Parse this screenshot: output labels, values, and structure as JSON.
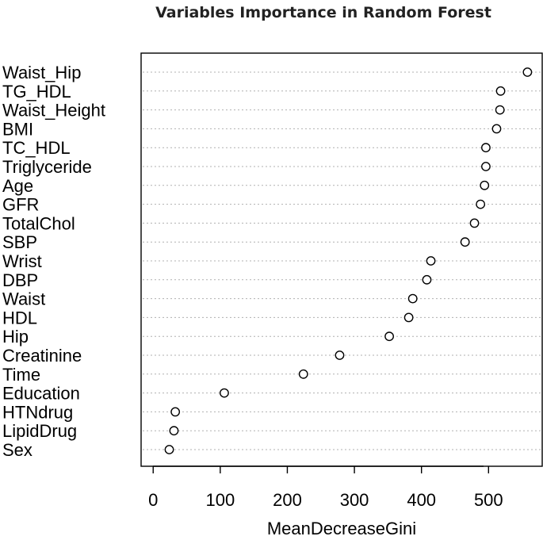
{
  "chart_data": {
    "type": "scatter",
    "title": "Variables Importance in Random Forest",
    "xlabel": "MeanDecreaseGini",
    "ylabel": "",
    "xlim": [
      -18,
      580
    ],
    "xticks": [
      0,
      100,
      200,
      300,
      400,
      500
    ],
    "grid": "dotted guide lines per variable",
    "categories": [
      "Waist_Hip",
      "TG_HDL",
      "Waist_Height",
      "BMI",
      "TC_HDL",
      "Triglyceride",
      "Age",
      "GFR",
      "TotalChol",
      "SBP",
      "Wrist",
      "DBP",
      "Waist",
      "HDL",
      "Hip",
      "Creatinine",
      "Time",
      "Education",
      "HTNdrug",
      "LipidDrug",
      "Sex"
    ],
    "values": [
      558,
      518,
      517,
      512,
      496,
      496,
      494,
      488,
      479,
      465,
      414,
      408,
      387,
      381,
      352,
      278,
      224,
      106,
      33,
      31,
      24
    ]
  }
}
